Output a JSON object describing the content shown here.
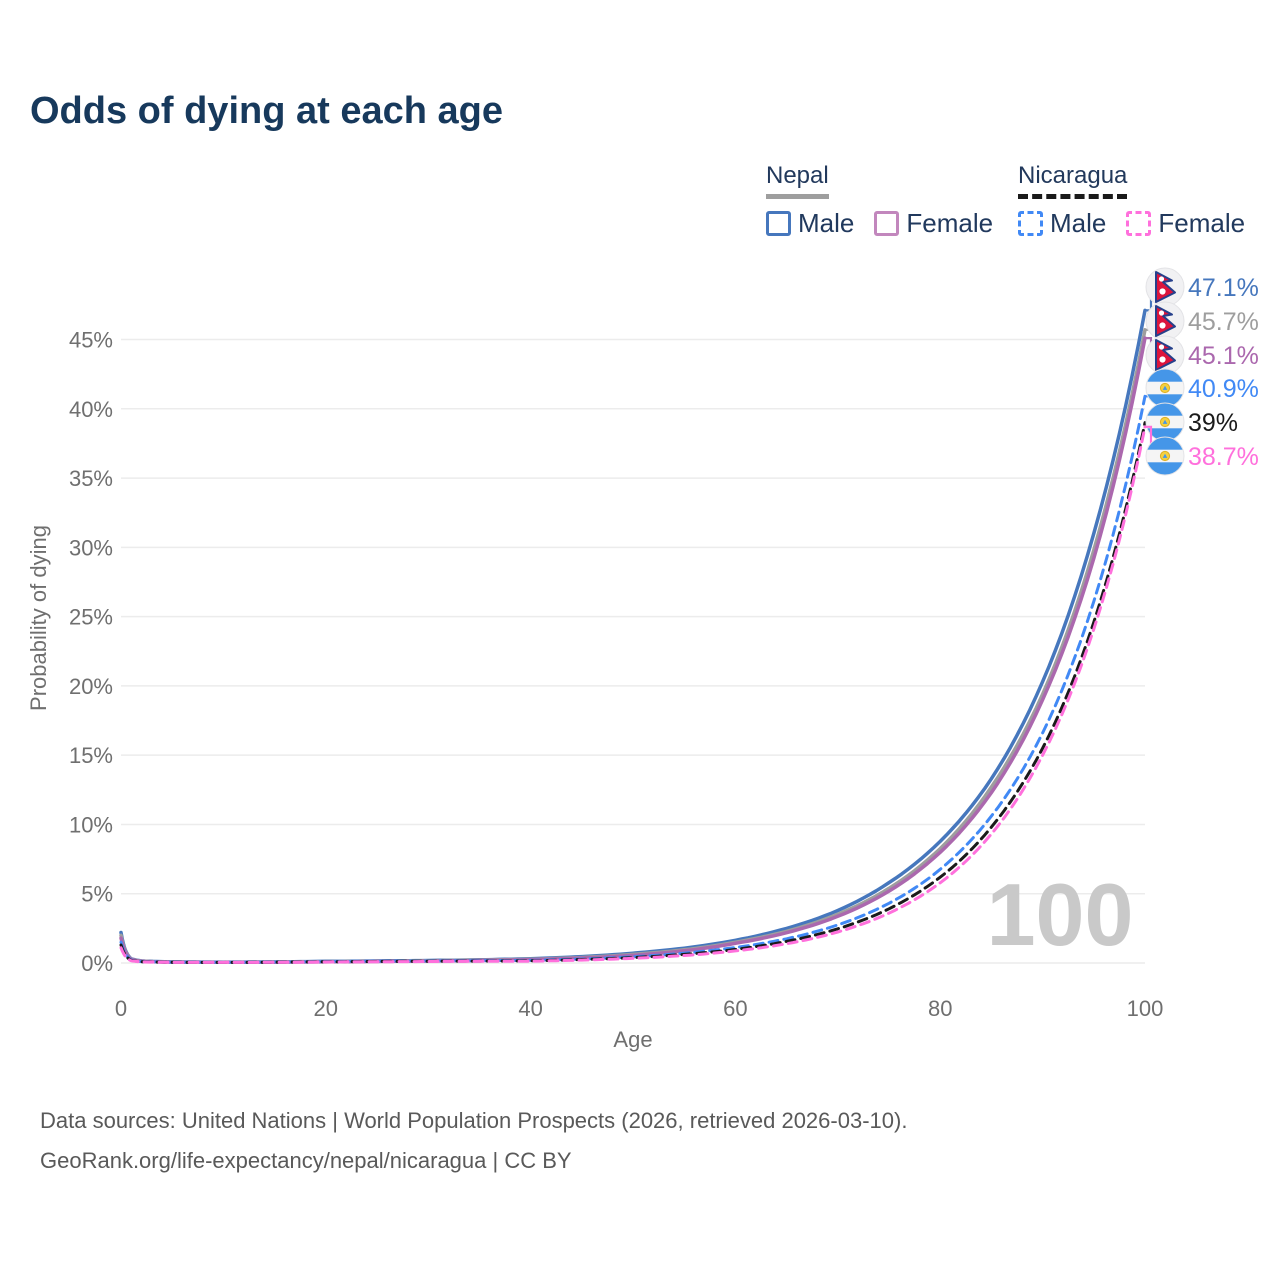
{
  "title": "Odds of dying at each age",
  "watermark": "100",
  "legend": {
    "groups": [
      {
        "name": "Nepal",
        "underline_color": "#9e9e9e",
        "underline_style": "solid",
        "items": [
          {
            "label": "Male",
            "color": "#4677bd",
            "dashed": false
          },
          {
            "label": "Female",
            "color": "#c287bd",
            "dashed": false
          }
        ]
      },
      {
        "name": "Nicaragua",
        "underline_color": "#1a1a1a",
        "underline_style": "dashed",
        "items": [
          {
            "label": "Male",
            "color": "#4189f5",
            "dashed": true
          },
          {
            "label": "Female",
            "color": "#ff70dc",
            "dashed": true
          }
        ]
      }
    ]
  },
  "footer": {
    "line1": "Data sources: United Nations | World Population Prospects (2026, retrieved 2026-03-10).",
    "line2": "GeoRank.org/life-expectancy/nepal/nicaragua | CC BY"
  },
  "chart_data": {
    "type": "line",
    "title": "Odds of dying at each age",
    "xlabel": "Age",
    "ylabel": "Probability of dying",
    "xlim": [
      0,
      100
    ],
    "ylim": [
      0,
      49.3
    ],
    "xticks": [
      0,
      20,
      40,
      60,
      80,
      100
    ],
    "yticks": [
      0,
      5,
      10,
      15,
      20,
      25,
      30,
      35,
      40,
      45
    ],
    "ytick_suffix": "%",
    "grid": true,
    "legend_position": "top-right",
    "series": [
      {
        "name": "Nepal Male",
        "country": "Nepal",
        "sex": "Male",
        "color": "#4677bd",
        "dashed": false,
        "flag": "nepal",
        "end_label": "47.1%",
        "end_value": 47.1,
        "points": [
          [
            0,
            2.2
          ],
          [
            1,
            0.3
          ],
          [
            2,
            0.15
          ],
          [
            5,
            0.08
          ],
          [
            10,
            0.06
          ],
          [
            15,
            0.08
          ],
          [
            20,
            0.12
          ],
          [
            25,
            0.15
          ],
          [
            30,
            0.18
          ],
          [
            35,
            0.23
          ],
          [
            40,
            0.31
          ],
          [
            45,
            0.46
          ],
          [
            50,
            0.71
          ],
          [
            55,
            1.07
          ],
          [
            60,
            1.64
          ],
          [
            65,
            2.5
          ],
          [
            70,
            3.79
          ],
          [
            75,
            5.8
          ],
          [
            80,
            8.78
          ],
          [
            85,
            13.3
          ],
          [
            90,
            20.3
          ],
          [
            95,
            31.0
          ],
          [
            100,
            47.1
          ]
        ]
      },
      {
        "name": "Nepal",
        "country": "Nepal",
        "sex": "Both",
        "color": "#9e9e9e",
        "dashed": false,
        "flag": "nepal",
        "end_label": "45.7%",
        "end_value": 45.7,
        "points": [
          [
            0,
            2.0
          ],
          [
            1,
            0.28
          ],
          [
            2,
            0.13
          ],
          [
            5,
            0.07
          ],
          [
            10,
            0.05
          ],
          [
            15,
            0.07
          ],
          [
            20,
            0.1
          ],
          [
            25,
            0.13
          ],
          [
            30,
            0.16
          ],
          [
            35,
            0.21
          ],
          [
            40,
            0.27
          ],
          [
            45,
            0.4
          ],
          [
            50,
            0.62
          ],
          [
            55,
            0.95
          ],
          [
            60,
            1.5
          ],
          [
            65,
            2.29
          ],
          [
            70,
            3.52
          ],
          [
            75,
            5.39
          ],
          [
            80,
            8.26
          ],
          [
            85,
            12.7
          ],
          [
            90,
            19.4
          ],
          [
            95,
            29.8
          ],
          [
            100,
            45.7
          ]
        ]
      },
      {
        "name": "Nepal Female",
        "country": "Nepal",
        "sex": "Female",
        "color": "#ab68ae",
        "dashed": false,
        "flag": "nepal",
        "end_label": "45.1%",
        "end_value": 45.1,
        "points": [
          [
            0,
            1.8
          ],
          [
            1,
            0.26
          ],
          [
            2,
            0.12
          ],
          [
            5,
            0.06
          ],
          [
            10,
            0.05
          ],
          [
            15,
            0.06
          ],
          [
            20,
            0.08
          ],
          [
            25,
            0.11
          ],
          [
            30,
            0.14
          ],
          [
            35,
            0.18
          ],
          [
            40,
            0.24
          ],
          [
            45,
            0.36
          ],
          [
            50,
            0.55
          ],
          [
            55,
            0.88
          ],
          [
            60,
            1.42
          ],
          [
            65,
            2.19
          ],
          [
            70,
            3.37
          ],
          [
            75,
            5.19
          ],
          [
            80,
            7.99
          ],
          [
            85,
            12.3
          ],
          [
            90,
            19.0
          ],
          [
            95,
            29.2
          ],
          [
            100,
            45.1
          ]
        ]
      },
      {
        "name": "Nicaragua Male",
        "country": "Nicaragua",
        "sex": "Male",
        "color": "#4189f5",
        "dashed": true,
        "flag": "nicaragua",
        "end_label": "40.9%",
        "end_value": 40.9,
        "points": [
          [
            0,
            1.5
          ],
          [
            1,
            0.22
          ],
          [
            2,
            0.1
          ],
          [
            5,
            0.06
          ],
          [
            10,
            0.05
          ],
          [
            15,
            0.07
          ],
          [
            20,
            0.11
          ],
          [
            25,
            0.13
          ],
          [
            30,
            0.15
          ],
          [
            35,
            0.17
          ],
          [
            40,
            0.19
          ],
          [
            45,
            0.29
          ],
          [
            50,
            0.45
          ],
          [
            55,
            0.71
          ],
          [
            60,
            1.12
          ],
          [
            65,
            1.75
          ],
          [
            70,
            2.75
          ],
          [
            75,
            4.31
          ],
          [
            80,
            6.76
          ],
          [
            85,
            10.6
          ],
          [
            90,
            16.6
          ],
          [
            95,
            26.1
          ],
          [
            100,
            40.9
          ]
        ]
      },
      {
        "name": "Nicaragua",
        "country": "Nicaragua",
        "sex": "Both",
        "color": "#1a1a1a",
        "dashed": true,
        "flag": "nicaragua",
        "end_label": "39%",
        "end_value": 39.0,
        "points": [
          [
            0,
            1.3
          ],
          [
            1,
            0.19
          ],
          [
            2,
            0.09
          ],
          [
            5,
            0.05
          ],
          [
            10,
            0.04
          ],
          [
            15,
            0.06
          ],
          [
            20,
            0.09
          ],
          [
            25,
            0.11
          ],
          [
            30,
            0.13
          ],
          [
            35,
            0.14
          ],
          [
            40,
            0.16
          ],
          [
            45,
            0.25
          ],
          [
            50,
            0.39
          ],
          [
            55,
            0.62
          ],
          [
            60,
            0.98
          ],
          [
            65,
            1.56
          ],
          [
            70,
            2.47
          ],
          [
            75,
            3.91
          ],
          [
            80,
            6.19
          ],
          [
            85,
            9.81
          ],
          [
            90,
            15.5
          ],
          [
            95,
            24.6
          ],
          [
            100,
            39.0
          ]
        ]
      },
      {
        "name": "Nicaragua Female",
        "country": "Nicaragua",
        "sex": "Female",
        "color": "#ff70dc",
        "dashed": true,
        "flag": "nicaragua",
        "end_label": "38.7%",
        "end_value": 38.7,
        "points": [
          [
            0,
            1.1
          ],
          [
            1,
            0.16
          ],
          [
            2,
            0.08
          ],
          [
            5,
            0.04
          ],
          [
            10,
            0.04
          ],
          [
            15,
            0.05
          ],
          [
            20,
            0.07
          ],
          [
            25,
            0.09
          ],
          [
            30,
            0.11
          ],
          [
            35,
            0.12
          ],
          [
            40,
            0.13
          ],
          [
            45,
            0.21
          ],
          [
            50,
            0.34
          ],
          [
            55,
            0.54
          ],
          [
            60,
            0.87
          ],
          [
            65,
            1.39
          ],
          [
            70,
            2.24
          ],
          [
            75,
            3.6
          ],
          [
            80,
            5.79
          ],
          [
            85,
            9.31
          ],
          [
            90,
            15.0
          ],
          [
            95,
            24.1
          ],
          [
            100,
            38.7
          ]
        ]
      }
    ]
  }
}
